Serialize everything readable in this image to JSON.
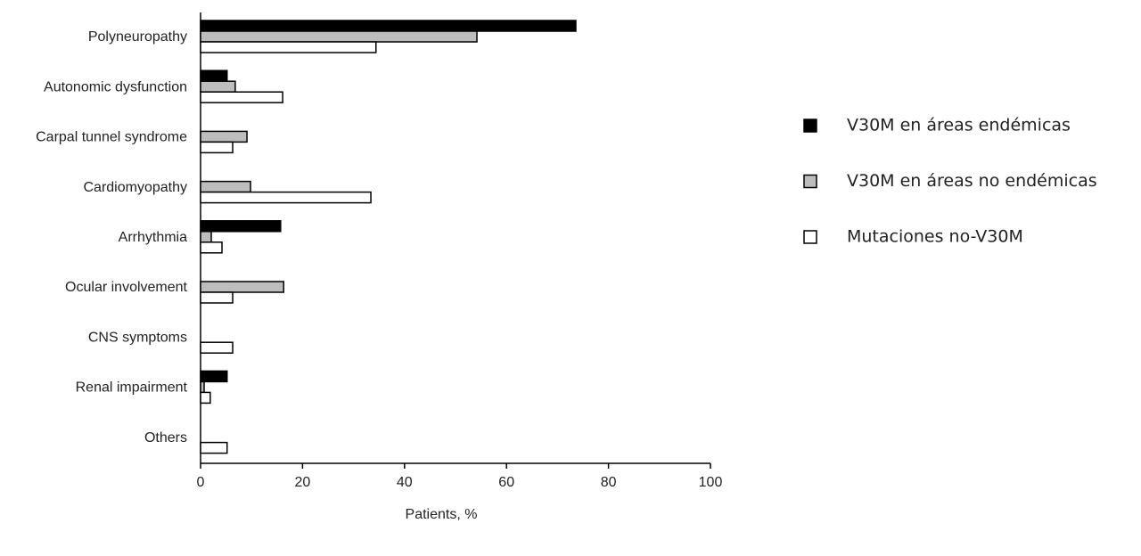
{
  "chart_data": {
    "type": "hbar",
    "xlabel": "Patients, %",
    "categories": [
      "Polyneuropathy",
      "Autonomic dysfunction",
      "Carpal tunnel syndrome",
      "Cardiomyopathy",
      "Arrhythmia",
      "Ocular involvement",
      "CNS symptoms",
      "Renal impairment",
      "Others"
    ],
    "series": [
      {
        "name": "V30M en áreas endémicas",
        "color": "#000000",
        "values": [
          73.6,
          5.2,
          0,
          0,
          15.7,
          0,
          0,
          5.2,
          0
        ]
      },
      {
        "name": "V30M en áreas no endémicas",
        "color": "#bdbdbd",
        "values": [
          54.2,
          6.8,
          9.1,
          9.8,
          2.1,
          16.3,
          0,
          0.7,
          0
        ]
      },
      {
        "name": "Mutaciones no-V30M",
        "color": "#ffffff",
        "values": [
          34.4,
          16.1,
          6.3,
          33.4,
          4.2,
          6.3,
          6.3,
          1.9,
          5.2
        ]
      }
    ],
    "xlim": [
      0,
      100
    ],
    "xticks": [
      0,
      20,
      40,
      60,
      80,
      100
    ],
    "grid": false,
    "legend": "right"
  }
}
